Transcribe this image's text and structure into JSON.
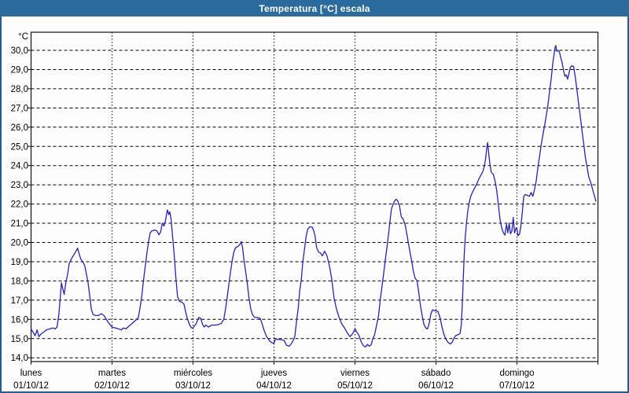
{
  "window": {
    "title": "Temperatura [°C] escala"
  },
  "colors": {
    "titlebar_bg": "#2a6a9d",
    "window_border": "#235e8e",
    "plot_border": "#111111",
    "grid": "#000000",
    "line": "#2424bb",
    "text": "#000000"
  },
  "chart_data": {
    "type": "line",
    "title": "Temperatura [°C] escala",
    "legend": "none",
    "grid": "dashed",
    "y_axis": {
      "unit_label": "°C",
      "min": 14.0,
      "max": 30.0,
      "tick_step": 1.0,
      "tick_labels": [
        "30,0",
        "29,0",
        "28,0",
        "27,0",
        "26,0",
        "25,0",
        "24,0",
        "23,0",
        "22,0",
        "21,0",
        "20,0",
        "19,0",
        "18,0",
        "17,0",
        "16,0",
        "15,0",
        "14,0"
      ]
    },
    "x_axis": {
      "total_hours": 168,
      "days": [
        {
          "name": "lunes",
          "date": "01/10/12"
        },
        {
          "name": "martes",
          "date": "02/10/12"
        },
        {
          "name": "miércoles",
          "date": "03/10/12"
        },
        {
          "name": "jueves",
          "date": "04/10/12"
        },
        {
          "name": "viernes",
          "date": "05/10/12"
        },
        {
          "name": "sábado",
          "date": "06/10/12"
        },
        {
          "name": "domingo",
          "date": "07/10/12"
        }
      ]
    },
    "series": [
      {
        "name": "Temperatura [°C]",
        "x_unit": "hours_from_monday_00",
        "points": [
          [
            0,
            15.5
          ],
          [
            0.7,
            15.3
          ],
          [
            1.2,
            15.15
          ],
          [
            1.8,
            15.45
          ],
          [
            2.3,
            15.1
          ],
          [
            3,
            15.25
          ],
          [
            3.5,
            15.3
          ],
          [
            4.5,
            15.45
          ],
          [
            5.5,
            15.5
          ],
          [
            6.5,
            15.55
          ],
          [
            7.2,
            15.5
          ],
          [
            7.7,
            15.6
          ],
          [
            8.2,
            16.2
          ],
          [
            8.6,
            17.0
          ],
          [
            9,
            17.9
          ],
          [
            9.4,
            17.6
          ],
          [
            9.8,
            17.3
          ],
          [
            10.3,
            17.9
          ],
          [
            10.8,
            18.3
          ],
          [
            11.3,
            18.9
          ],
          [
            11.8,
            19.1
          ],
          [
            12.3,
            19.25
          ],
          [
            13,
            19.45
          ],
          [
            13.8,
            19.7
          ],
          [
            14.2,
            19.45
          ],
          [
            14.7,
            19.15
          ],
          [
            15.3,
            19.0
          ],
          [
            15.9,
            18.8
          ],
          [
            16.4,
            18.35
          ],
          [
            16.9,
            17.9
          ],
          [
            17.4,
            17.2
          ],
          [
            17.9,
            16.5
          ],
          [
            18.4,
            16.25
          ],
          [
            19.2,
            16.2
          ],
          [
            20,
            16.2
          ],
          [
            20.8,
            16.3
          ],
          [
            21.6,
            16.2
          ],
          [
            22.3,
            16.0
          ],
          [
            23.1,
            15.8
          ],
          [
            24,
            15.6
          ],
          [
            25,
            15.55
          ],
          [
            26,
            15.5
          ],
          [
            26.8,
            15.45
          ],
          [
            27.3,
            15.55
          ],
          [
            28.1,
            15.5
          ],
          [
            29,
            15.65
          ],
          [
            30,
            15.8
          ],
          [
            31,
            15.95
          ],
          [
            31.8,
            16.1
          ],
          [
            32.3,
            16.6
          ],
          [
            32.8,
            17.2
          ],
          [
            33.3,
            18.0
          ],
          [
            33.8,
            18.7
          ],
          [
            34.3,
            19.4
          ],
          [
            34.8,
            20.0
          ],
          [
            35.3,
            20.5
          ],
          [
            35.8,
            20.6
          ],
          [
            36.6,
            20.65
          ],
          [
            37.3,
            20.6
          ],
          [
            37.9,
            20.4
          ],
          [
            38.4,
            20.55
          ],
          [
            38.9,
            21.0
          ],
          [
            39.4,
            20.85
          ],
          [
            39.9,
            21.2
          ],
          [
            40.4,
            21.7
          ],
          [
            40.8,
            21.45
          ],
          [
            41.1,
            21.6
          ],
          [
            41.5,
            21.2
          ],
          [
            41.9,
            20.4
          ],
          [
            42.4,
            19.4
          ],
          [
            42.9,
            18.2
          ],
          [
            43.4,
            17.2
          ],
          [
            43.9,
            16.95
          ],
          [
            44.6,
            16.9
          ],
          [
            45.3,
            16.8
          ],
          [
            45.8,
            16.4
          ],
          [
            46.3,
            16.05
          ],
          [
            47,
            15.7
          ],
          [
            47.6,
            15.55
          ],
          [
            48,
            15.55
          ],
          [
            49,
            15.8
          ],
          [
            49.7,
            16.1
          ],
          [
            50.3,
            16.05
          ],
          [
            50.8,
            15.75
          ],
          [
            51.3,
            15.6
          ],
          [
            51.8,
            15.7
          ],
          [
            52.6,
            15.6
          ],
          [
            53.5,
            15.7
          ],
          [
            54.5,
            15.7
          ],
          [
            55.5,
            15.72
          ],
          [
            56.4,
            15.8
          ],
          [
            57.1,
            16.0
          ],
          [
            57.6,
            16.5
          ],
          [
            58.1,
            17.1
          ],
          [
            58.6,
            17.8
          ],
          [
            59.1,
            18.45
          ],
          [
            59.6,
            19.05
          ],
          [
            60.1,
            19.5
          ],
          [
            60.6,
            19.72
          ],
          [
            61.3,
            19.8
          ],
          [
            61.9,
            19.9
          ],
          [
            62.3,
            20.05
          ],
          [
            62.7,
            19.7
          ],
          [
            63.1,
            19.1
          ],
          [
            63.6,
            18.5
          ],
          [
            64.1,
            17.85
          ],
          [
            64.6,
            17.1
          ],
          [
            65.1,
            16.55
          ],
          [
            65.6,
            16.25
          ],
          [
            66.3,
            16.1
          ],
          [
            67.1,
            16.1
          ],
          [
            67.9,
            16.05
          ],
          [
            68.4,
            15.8
          ],
          [
            69.1,
            15.4
          ],
          [
            69.8,
            15.1
          ],
          [
            70.6,
            14.9
          ],
          [
            71.4,
            14.78
          ],
          [
            72,
            14.75
          ],
          [
            72.5,
            15.0
          ],
          [
            73.1,
            14.95
          ],
          [
            74.1,
            14.95
          ],
          [
            75,
            14.9
          ],
          [
            75.7,
            14.65
          ],
          [
            76.5,
            14.6
          ],
          [
            77.2,
            14.75
          ],
          [
            77.8,
            14.95
          ],
          [
            78.2,
            15.15
          ],
          [
            78.7,
            15.95
          ],
          [
            79.2,
            16.6
          ],
          [
            79.6,
            17.45
          ],
          [
            80.1,
            18.1
          ],
          [
            80.5,
            18.95
          ],
          [
            81,
            19.6
          ],
          [
            81.5,
            20.3
          ],
          [
            82,
            20.7
          ],
          [
            82.6,
            20.82
          ],
          [
            83.3,
            20.8
          ],
          [
            83.8,
            20.6
          ],
          [
            84.2,
            20.3
          ],
          [
            84.6,
            19.75
          ],
          [
            85.2,
            19.5
          ],
          [
            85.8,
            19.45
          ],
          [
            86.3,
            19.3
          ],
          [
            87,
            19.55
          ],
          [
            87.7,
            19.3
          ],
          [
            88.4,
            18.8
          ],
          [
            89.1,
            18.1
          ],
          [
            89.8,
            17.1
          ],
          [
            90.5,
            16.55
          ],
          [
            91.3,
            16.1
          ],
          [
            92.1,
            15.75
          ],
          [
            92.9,
            15.55
          ],
          [
            93.7,
            15.3
          ],
          [
            94.5,
            15.1
          ],
          [
            95.3,
            15.25
          ],
          [
            96,
            15.5
          ],
          [
            96.5,
            15.35
          ],
          [
            97.1,
            15.2
          ],
          [
            97.8,
            14.85
          ],
          [
            98.5,
            14.62
          ],
          [
            99.2,
            14.57
          ],
          [
            99.7,
            14.7
          ],
          [
            100.2,
            14.6
          ],
          [
            100.8,
            14.68
          ],
          [
            101.3,
            15.0
          ],
          [
            101.8,
            15.2
          ],
          [
            102.4,
            15.7
          ],
          [
            103,
            16.2
          ],
          [
            103.5,
            17.05
          ],
          [
            104,
            17.7
          ],
          [
            104.5,
            18.4
          ],
          [
            105,
            19.1
          ],
          [
            105.5,
            19.8
          ],
          [
            106,
            20.5
          ],
          [
            106.4,
            21.15
          ],
          [
            106.8,
            21.75
          ],
          [
            107.2,
            21.95
          ],
          [
            107.7,
            22.15
          ],
          [
            108.2,
            22.25
          ],
          [
            108.7,
            22.15
          ],
          [
            109.2,
            21.9
          ],
          [
            109.7,
            21.35
          ],
          [
            110.3,
            21.2
          ],
          [
            110.9,
            20.9
          ],
          [
            111.4,
            20.4
          ],
          [
            111.9,
            19.9
          ],
          [
            112.4,
            19.4
          ],
          [
            112.9,
            18.95
          ],
          [
            113.3,
            18.5
          ],
          [
            113.8,
            18.15
          ],
          [
            114.4,
            18.0
          ],
          [
            114.9,
            17.4
          ],
          [
            115.4,
            16.7
          ],
          [
            115.9,
            16.2
          ],
          [
            116.4,
            15.75
          ],
          [
            117,
            15.55
          ],
          [
            117.5,
            15.5
          ],
          [
            118,
            15.8
          ],
          [
            118.5,
            16.3
          ],
          [
            119,
            16.5
          ],
          [
            119.5,
            16.45
          ],
          [
            120,
            16.45
          ],
          [
            120.6,
            16.4
          ],
          [
            121.2,
            16.1
          ],
          [
            121.8,
            15.6
          ],
          [
            122.4,
            15.2
          ],
          [
            123,
            14.95
          ],
          [
            123.6,
            14.8
          ],
          [
            124.2,
            14.72
          ],
          [
            124.8,
            14.8
          ],
          [
            125.3,
            15.0
          ],
          [
            125.8,
            15.15
          ],
          [
            126.5,
            15.2
          ],
          [
            127.1,
            15.25
          ],
          [
            127.5,
            15.7
          ],
          [
            127.8,
            16.8
          ],
          [
            128.1,
            18.2
          ],
          [
            128.4,
            19.5
          ],
          [
            128.7,
            20.3
          ],
          [
            129,
            20.9
          ],
          [
            129.4,
            21.6
          ],
          [
            129.8,
            22.05
          ],
          [
            130.3,
            22.4
          ],
          [
            130.9,
            22.65
          ],
          [
            131.5,
            22.85
          ],
          [
            132.1,
            23.05
          ],
          [
            132.7,
            23.3
          ],
          [
            133.3,
            23.5
          ],
          [
            133.9,
            23.7
          ],
          [
            134.3,
            23.95
          ],
          [
            134.7,
            24.35
          ],
          [
            135,
            24.85
          ],
          [
            135.3,
            25.2
          ],
          [
            135.7,
            24.5
          ],
          [
            136,
            24.05
          ],
          [
            136.4,
            23.65
          ],
          [
            137,
            23.55
          ],
          [
            137.5,
            23.2
          ],
          [
            138,
            22.7
          ],
          [
            138.5,
            21.95
          ],
          [
            139,
            21.2
          ],
          [
            139.5,
            20.75
          ],
          [
            140,
            20.5
          ],
          [
            140.4,
            20.38
          ],
          [
            140.9,
            20.95
          ],
          [
            141.3,
            20.5
          ],
          [
            141.7,
            21.0
          ],
          [
            142.1,
            20.45
          ],
          [
            142.5,
            20.6
          ],
          [
            142.9,
            21.3
          ],
          [
            143.3,
            20.5
          ],
          [
            143.7,
            20.75
          ],
          [
            144,
            20.7
          ],
          [
            144.3,
            20.35
          ],
          [
            144.8,
            20.45
          ],
          [
            145.2,
            20.9
          ],
          [
            145.6,
            21.6
          ],
          [
            146,
            22.4
          ],
          [
            146.5,
            22.5
          ],
          [
            147.1,
            22.45
          ],
          [
            147.7,
            22.4
          ],
          [
            148.2,
            22.6
          ],
          [
            148.7,
            22.4
          ],
          [
            149.2,
            22.75
          ],
          [
            149.7,
            23.2
          ],
          [
            150.2,
            23.9
          ],
          [
            150.7,
            24.5
          ],
          [
            151.2,
            25.1
          ],
          [
            151.7,
            25.6
          ],
          [
            152.2,
            26.1
          ],
          [
            152.7,
            26.6
          ],
          [
            153.2,
            27.2
          ],
          [
            153.7,
            27.9
          ],
          [
            154.2,
            28.6
          ],
          [
            154.6,
            29.3
          ],
          [
            155,
            29.8
          ],
          [
            155.3,
            30.15
          ],
          [
            155.5,
            30.25
          ],
          [
            155.8,
            29.95
          ],
          [
            156.2,
            30.0
          ],
          [
            156.6,
            29.9
          ],
          [
            157,
            29.6
          ],
          [
            157.4,
            29.35
          ],
          [
            157.8,
            28.95
          ],
          [
            158.2,
            28.65
          ],
          [
            158.6,
            28.72
          ],
          [
            159,
            28.5
          ],
          [
            159.4,
            28.8
          ],
          [
            159.8,
            29.1
          ],
          [
            160.3,
            29.2
          ],
          [
            160.8,
            29.15
          ],
          [
            161.3,
            28.6
          ],
          [
            161.8,
            27.9
          ],
          [
            162.3,
            27.2
          ],
          [
            162.8,
            26.5
          ],
          [
            163.3,
            25.8
          ],
          [
            163.8,
            25.1
          ],
          [
            164.3,
            24.4
          ],
          [
            164.8,
            23.9
          ],
          [
            165.3,
            23.4
          ],
          [
            165.9,
            23.1
          ],
          [
            166.5,
            22.7
          ],
          [
            167,
            22.4
          ],
          [
            167.4,
            22.15
          ]
        ]
      }
    ]
  }
}
